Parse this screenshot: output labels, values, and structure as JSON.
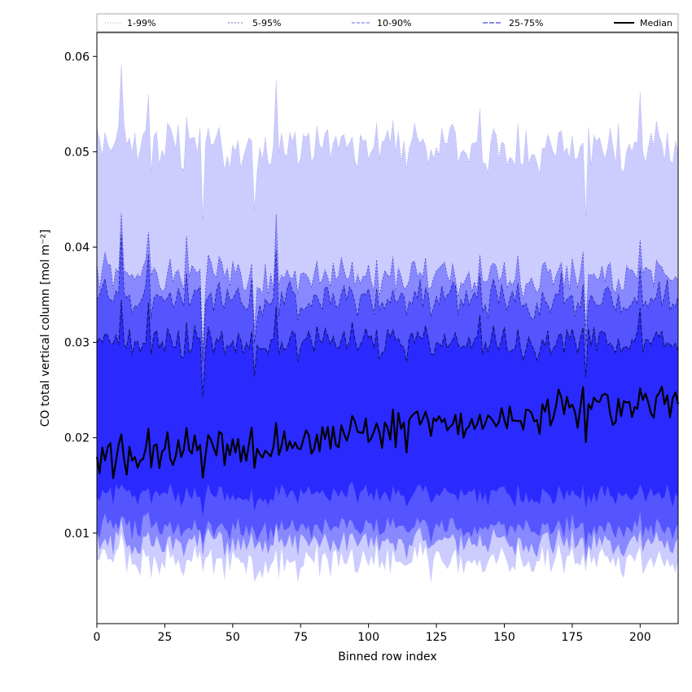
{
  "chart_data": {
    "type": "area",
    "xlabel": "Binned row index",
    "ylabel": "CO total vertical column [mol m⁻²]",
    "xlim": [
      0,
      214
    ],
    "ylim": [
      0.0005,
      0.0625
    ],
    "xticks": [
      0,
      25,
      50,
      75,
      100,
      125,
      150,
      175,
      200
    ],
    "yticks": [
      0.01,
      0.02,
      0.03,
      0.04,
      0.05,
      0.06
    ],
    "ytick_labels": [
      "0.01",
      "0.02",
      "0.03",
      "0.04",
      "0.05",
      "0.06"
    ],
    "grid": false,
    "legend_position": "top",
    "n_rows": 215,
    "bands": [
      {
        "name": "1-99%",
        "lower_base": 0.007,
        "upper_base": 0.0505,
        "noise": 0.0028,
        "fill": "#ccccff",
        "edge": "#8888dd",
        "dash": "1,2",
        "edge_width": 0.6
      },
      {
        "name": "5-95%",
        "lower_base": 0.009,
        "upper_base": 0.037,
        "noise": 0.0022,
        "fill": "#8888ff",
        "edge": "#3333bb",
        "dash": "2,2",
        "edge_width": 0.6
      },
      {
        "name": "10-90%",
        "lower_base": 0.0105,
        "upper_base": 0.0345,
        "noise": 0.002,
        "fill": "#5555ff",
        "edge": "#222299",
        "dash": "4,2",
        "edge_width": 0.8
      },
      {
        "name": "25-75%",
        "lower_base": 0.014,
        "upper_base": 0.03,
        "noise": 0.0018,
        "fill": "#2a2aff",
        "edge": "#111166",
        "dash": "6,2",
        "edge_width": 1.0
      }
    ],
    "median": {
      "name": "Median",
      "start": 0.0175,
      "end": 0.024,
      "noise": 0.002,
      "color": "#000000"
    },
    "spikes": [
      {
        "x": 9,
        "dy": 0.0068
      },
      {
        "x": 19,
        "dy": 0.004
      },
      {
        "x": 33,
        "dy": 0.0047
      },
      {
        "x": 39,
        "dy": -0.0075
      },
      {
        "x": 58,
        "dy": -0.005
      },
      {
        "x": 66,
        "dy": 0.0075
      },
      {
        "x": 141,
        "dy": 0.004
      },
      {
        "x": 171,
        "dy": 0.0032
      },
      {
        "x": 180,
        "dy": -0.005
      },
      {
        "x": 200,
        "dy": 0.005
      }
    ]
  },
  "legend": {
    "items": [
      "1-99%",
      "5-95%",
      "10-90%",
      "25-75%",
      "Median"
    ]
  }
}
